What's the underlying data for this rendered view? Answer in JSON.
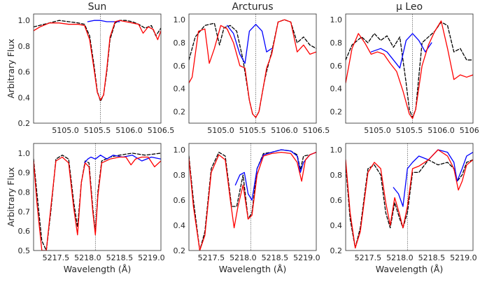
{
  "chart_data": [
    {
      "type": "line",
      "title": "Sun",
      "ylabel": "Arbitrary Flux",
      "xlabel": "",
      "xlim": [
        5104.5,
        5106.5
      ],
      "ylim": [
        0.2,
        1.05
      ],
      "xticks": [
        "5105.0",
        "5105.5",
        "5106.0",
        "5106.5"
      ],
      "yticks": [
        "0.2",
        "0.4",
        "0.6",
        "0.8",
        "1.0"
      ],
      "vline": 5105.55,
      "series": [
        {
          "color": "#000000",
          "dash": true,
          "x": [
            5104.5,
            5104.75,
            5104.9,
            5105.05,
            5105.2,
            5105.3,
            5105.38,
            5105.45,
            5105.5,
            5105.55,
            5105.6,
            5105.65,
            5105.7,
            5105.78,
            5105.85,
            5105.95,
            5106.05,
            5106.15,
            5106.25,
            5106.35,
            5106.42,
            5106.5
          ],
          "y": [
            0.95,
            0.98,
            1.0,
            0.99,
            0.98,
            0.97,
            0.88,
            0.65,
            0.45,
            0.37,
            0.42,
            0.6,
            0.85,
            0.98,
            1.0,
            1.0,
            0.99,
            0.97,
            0.94,
            0.96,
            0.88,
            0.94
          ]
        },
        {
          "color": "#0000ff",
          "dash": false,
          "x": [
            5105.35,
            5105.45,
            5105.55,
            5105.65,
            5105.75,
            5105.85
          ],
          "y": [
            0.99,
            1.0,
            1.0,
            0.99,
            0.99,
            0.99
          ]
        },
        {
          "color": "#ff0000",
          "dash": false,
          "x": [
            5104.5,
            5104.6,
            5104.75,
            5104.9,
            5105.05,
            5105.2,
            5105.3,
            5105.38,
            5105.45,
            5105.5,
            5105.55,
            5105.6,
            5105.65,
            5105.7,
            5105.78,
            5105.85,
            5105.95,
            5106.05,
            5106.15,
            5106.22,
            5106.3,
            5106.38,
            5106.45,
            5106.5
          ],
          "y": [
            0.92,
            0.95,
            0.98,
            0.98,
            0.97,
            0.97,
            0.96,
            0.85,
            0.62,
            0.44,
            0.38,
            0.42,
            0.62,
            0.87,
            0.99,
            1.0,
            0.99,
            0.98,
            0.97,
            0.9,
            0.95,
            0.93,
            0.85,
            0.92
          ]
        }
      ]
    },
    {
      "type": "line",
      "title": "Arcturus",
      "ylabel": "",
      "xlabel": "",
      "xlim": [
        5104.5,
        5106.5
      ],
      "ylim": [
        0.1,
        1.05
      ],
      "xticks": [
        "5105.0",
        "5105.5",
        "5106.0",
        "5106.5"
      ],
      "yticks": [
        "0.2",
        "0.4",
        "0.6",
        "0.8",
        "1.0"
      ],
      "vline": 5105.55,
      "series": [
        {
          "color": "#000000",
          "dash": true,
          "x": [
            5104.5,
            5104.6,
            5104.75,
            5104.9,
            5104.98,
            5105.05,
            5105.15,
            5105.25,
            5105.35,
            5105.45,
            5105.5,
            5105.55,
            5105.6,
            5105.68,
            5105.72,
            5105.8,
            5105.9,
            5106.0,
            5106.1,
            5106.2,
            5106.3,
            5106.4,
            5106.5
          ],
          "y": [
            0.65,
            0.85,
            0.95,
            0.97,
            0.78,
            0.93,
            0.95,
            0.9,
            0.65,
            0.3,
            0.18,
            0.15,
            0.2,
            0.45,
            0.55,
            0.72,
            0.98,
            1.0,
            0.98,
            0.8,
            0.85,
            0.78,
            0.75
          ]
        },
        {
          "color": "#0000ff",
          "dash": false,
          "x": [
            5105.1,
            5105.2,
            5105.3,
            5105.38,
            5105.45,
            5105.55,
            5105.65,
            5105.72,
            5105.8
          ],
          "y": [
            0.95,
            0.88,
            0.7,
            0.62,
            0.9,
            0.96,
            0.9,
            0.72,
            0.75
          ]
        },
        {
          "color": "#ff0000",
          "dash": false,
          "x": [
            5104.5,
            5104.55,
            5104.65,
            5104.75,
            5104.82,
            5104.9,
            5105.0,
            5105.1,
            5105.2,
            5105.3,
            5105.38,
            5105.45,
            5105.5,
            5105.55,
            5105.6,
            5105.68,
            5105.72,
            5105.8,
            5105.9,
            5106.0,
            5106.1,
            5106.2,
            5106.3,
            5106.4,
            5106.5
          ],
          "y": [
            0.45,
            0.5,
            0.9,
            0.92,
            0.62,
            0.75,
            0.95,
            0.92,
            0.8,
            0.6,
            0.58,
            0.3,
            0.18,
            0.15,
            0.2,
            0.45,
            0.58,
            0.7,
            0.98,
            1.0,
            0.98,
            0.72,
            0.78,
            0.7,
            0.72
          ]
        }
      ]
    },
    {
      "type": "line",
      "title": "μ Leo",
      "ylabel": "",
      "xlabel": "",
      "xlim": [
        5104.5,
        5106.5
      ],
      "ylim": [
        0.1,
        1.05
      ],
      "xticks": [
        "5105.0",
        "5105.5",
        "5106.0",
        "5106.5"
      ],
      "yticks": [
        "0.2",
        "0.4",
        "0.6",
        "0.8",
        "1.0"
      ],
      "vline": 5105.55,
      "series": [
        {
          "color": "#000000",
          "dash": true,
          "x": [
            5104.5,
            5104.6,
            5104.75,
            5104.85,
            5104.95,
            5105.05,
            5105.15,
            5105.25,
            5105.35,
            5105.45,
            5105.5,
            5105.55,
            5105.6,
            5105.7,
            5105.8,
            5105.9,
            5106.0,
            5106.1,
            5106.2,
            5106.3,
            5106.4,
            5106.5
          ],
          "y": [
            0.65,
            0.78,
            0.85,
            0.8,
            0.88,
            0.82,
            0.86,
            0.76,
            0.85,
            0.45,
            0.22,
            0.15,
            0.22,
            0.8,
            0.85,
            0.9,
            0.98,
            0.95,
            0.72,
            0.75,
            0.65,
            0.65
          ]
        },
        {
          "color": "#0000ff",
          "dash": false,
          "x": [
            5104.9,
            5105.05,
            5105.15,
            5105.25,
            5105.35,
            5105.45,
            5105.55,
            5105.65,
            5105.75,
            5105.85
          ],
          "y": [
            0.72,
            0.75,
            0.72,
            0.65,
            0.58,
            0.82,
            0.88,
            0.82,
            0.72,
            0.8
          ]
        },
        {
          "color": "#ff0000",
          "dash": false,
          "x": [
            5104.5,
            5104.6,
            5104.7,
            5104.8,
            5104.9,
            5105.0,
            5105.1,
            5105.2,
            5105.3,
            5105.4,
            5105.5,
            5105.55,
            5105.6,
            5105.7,
            5105.8,
            5105.9,
            5106.0,
            5106.1,
            5106.2,
            5106.3,
            5106.4,
            5106.5
          ],
          "y": [
            0.45,
            0.75,
            0.88,
            0.8,
            0.7,
            0.72,
            0.7,
            0.62,
            0.55,
            0.38,
            0.18,
            0.14,
            0.22,
            0.6,
            0.78,
            0.9,
            0.99,
            0.75,
            0.48,
            0.52,
            0.5,
            0.52
          ]
        }
      ]
    },
    {
      "type": "line",
      "title": "",
      "ylabel": "Arbitrary Flux",
      "xlabel": "Wavelength (Å)",
      "xlim": [
        5217.15,
        5219.15
      ],
      "ylim": [
        0.5,
        1.05
      ],
      "xticks": [
        "5217.5",
        "5218.0",
        "5218.5",
        "5219.0"
      ],
      "yticks": [
        "0.5",
        "0.6",
        "0.7",
        "0.8",
        "0.9",
        "1.0"
      ],
      "vline": 5218.12,
      "series": [
        {
          "color": "#000000",
          "dash": true,
          "x": [
            5217.15,
            5217.2,
            5217.28,
            5217.35,
            5217.42,
            5217.5,
            5217.6,
            5217.7,
            5217.78,
            5217.84,
            5217.9,
            5217.96,
            5218.02,
            5218.08,
            5218.12,
            5218.16,
            5218.22,
            5218.35,
            5218.5,
            5218.7,
            5218.9,
            5219.15
          ],
          "y": [
            0.97,
            0.8,
            0.55,
            0.5,
            0.7,
            0.97,
            0.99,
            0.97,
            0.75,
            0.62,
            0.85,
            0.96,
            0.95,
            0.72,
            0.59,
            0.8,
            0.96,
            0.98,
            0.99,
            1.0,
            0.99,
            1.0
          ]
        },
        {
          "color": "#0000ff",
          "dash": false,
          "x": [
            5217.95,
            5218.0,
            5218.05,
            5218.12,
            5218.2,
            5218.3,
            5218.4,
            5218.55,
            5218.7,
            5218.85,
            5219.0,
            5219.15
          ],
          "y": [
            0.95,
            0.97,
            0.98,
            0.97,
            0.99,
            0.97,
            0.99,
            0.98,
            0.99,
            0.96,
            0.98,
            0.97
          ]
        },
        {
          "color": "#ff0000",
          "dash": false,
          "x": [
            5217.15,
            5217.2,
            5217.28,
            5217.35,
            5217.42,
            5217.5,
            5217.6,
            5217.7,
            5217.78,
            5217.84,
            5217.9,
            5217.96,
            5218.02,
            5218.08,
            5218.12,
            5218.16,
            5218.22,
            5218.35,
            5218.5,
            5218.6,
            5218.68,
            5218.75,
            5218.85,
            5218.95,
            5219.05,
            5219.15
          ],
          "y": [
            0.96,
            0.75,
            0.5,
            0.5,
            0.72,
            0.96,
            0.98,
            0.95,
            0.72,
            0.58,
            0.85,
            0.95,
            0.93,
            0.7,
            0.58,
            0.78,
            0.95,
            0.97,
            0.98,
            0.98,
            0.94,
            0.97,
            0.98,
            0.98,
            0.93,
            0.96
          ]
        }
      ]
    },
    {
      "type": "line",
      "title": "",
      "ylabel": "",
      "xlabel": "Wavelength (Å)",
      "xlim": [
        5217.15,
        5219.15
      ],
      "ylim": [
        0.2,
        1.05
      ],
      "xticks": [
        "5217.5",
        "5218.0",
        "5218.5",
        "5219.0"
      ],
      "yticks": [
        "0.2",
        "0.4",
        "0.6",
        "0.8",
        "1.0"
      ],
      "vline": 5218.12,
      "series": [
        {
          "color": "#000000",
          "dash": true,
          "x": [
            5217.15,
            5217.22,
            5217.32,
            5217.4,
            5217.5,
            5217.62,
            5217.72,
            5217.82,
            5217.9,
            5218.0,
            5218.08,
            5218.14,
            5218.22,
            5218.32,
            5218.45,
            5218.6,
            5218.75,
            5218.85,
            5218.9,
            5218.95,
            5219.05,
            5219.15
          ],
          "y": [
            0.95,
            0.6,
            0.2,
            0.35,
            0.85,
            0.98,
            0.95,
            0.55,
            0.55,
            0.8,
            0.45,
            0.5,
            0.85,
            0.97,
            0.98,
            1.0,
            0.99,
            0.96,
            0.84,
            0.95,
            0.96,
            0.98
          ]
        },
        {
          "color": "#0000ff",
          "dash": false,
          "x": [
            5217.88,
            5217.95,
            5218.02,
            5218.08,
            5218.14,
            5218.22,
            5218.32,
            5218.45,
            5218.6,
            5218.75,
            5218.85,
            5218.9,
            5218.95,
            5219.05,
            5219.15
          ],
          "y": [
            0.72,
            0.8,
            0.82,
            0.65,
            0.6,
            0.85,
            0.96,
            0.98,
            1.0,
            0.99,
            0.95,
            0.82,
            0.9,
            0.96,
            0.98
          ]
        },
        {
          "color": "#ff0000",
          "dash": false,
          "x": [
            5217.15,
            5217.22,
            5217.32,
            5217.4,
            5217.5,
            5217.62,
            5217.72,
            5217.8,
            5217.86,
            5217.92,
            5218.0,
            5218.08,
            5218.14,
            5218.22,
            5218.32,
            5218.45,
            5218.6,
            5218.75,
            5218.85,
            5218.92,
            5218.98,
            5219.05,
            5219.15
          ],
          "y": [
            0.93,
            0.55,
            0.2,
            0.32,
            0.82,
            0.96,
            0.92,
            0.6,
            0.38,
            0.55,
            0.72,
            0.45,
            0.48,
            0.8,
            0.95,
            0.97,
            0.98,
            0.97,
            0.9,
            0.75,
            0.92,
            0.96,
            0.98
          ]
        }
      ]
    },
    {
      "type": "line",
      "title": "",
      "ylabel": "",
      "xlabel": "Wavelength (Å)",
      "xlim": [
        5217.15,
        5219.15
      ],
      "ylim": [
        0.2,
        1.05
      ],
      "xticks": [
        "5217.5",
        "5218.0",
        "5218.5",
        "5219.0"
      ],
      "yticks": [
        "0.2",
        "0.4",
        "0.6",
        "0.8",
        "1.0"
      ],
      "vline": 5218.12,
      "series": [
        {
          "color": "#000000",
          "dash": true,
          "x": [
            5217.15,
            5217.22,
            5217.3,
            5217.38,
            5217.5,
            5217.6,
            5217.7,
            5217.78,
            5217.85,
            5217.92,
            5218.0,
            5218.05,
            5218.12,
            5218.2,
            5218.3,
            5218.45,
            5218.6,
            5218.75,
            5218.85,
            5218.9,
            5218.98,
            5219.05,
            5219.15
          ],
          "y": [
            0.88,
            0.45,
            0.22,
            0.38,
            0.85,
            0.88,
            0.8,
            0.5,
            0.38,
            0.58,
            0.45,
            0.38,
            0.5,
            0.82,
            0.82,
            0.92,
            0.88,
            0.9,
            0.85,
            0.75,
            0.8,
            0.9,
            0.92
          ]
        },
        {
          "color": "#0000ff",
          "dash": false,
          "x": [
            5217.9,
            5217.98,
            5218.05,
            5218.12,
            5218.2,
            5218.3,
            5218.45,
            5218.6,
            5218.75,
            5218.85,
            5218.9,
            5218.98,
            5219.05,
            5219.15
          ],
          "y": [
            0.7,
            0.65,
            0.55,
            0.85,
            0.9,
            0.95,
            0.92,
            1.0,
            0.98,
            0.9,
            0.75,
            0.85,
            0.95,
            0.98
          ]
        },
        {
          "color": "#ff0000",
          "dash": false,
          "x": [
            5217.15,
            5217.22,
            5217.3,
            5217.38,
            5217.5,
            5217.6,
            5217.7,
            5217.78,
            5217.85,
            5217.92,
            5218.0,
            5218.05,
            5218.12,
            5218.2,
            5218.3,
            5218.45,
            5218.6,
            5218.75,
            5218.85,
            5218.92,
            5218.98,
            5219.05,
            5219.15
          ],
          "y": [
            0.92,
            0.5,
            0.22,
            0.35,
            0.82,
            0.9,
            0.85,
            0.58,
            0.4,
            0.62,
            0.48,
            0.38,
            0.55,
            0.85,
            0.87,
            0.92,
            1.0,
            0.95,
            0.85,
            0.68,
            0.75,
            0.88,
            0.92
          ]
        }
      ]
    }
  ]
}
